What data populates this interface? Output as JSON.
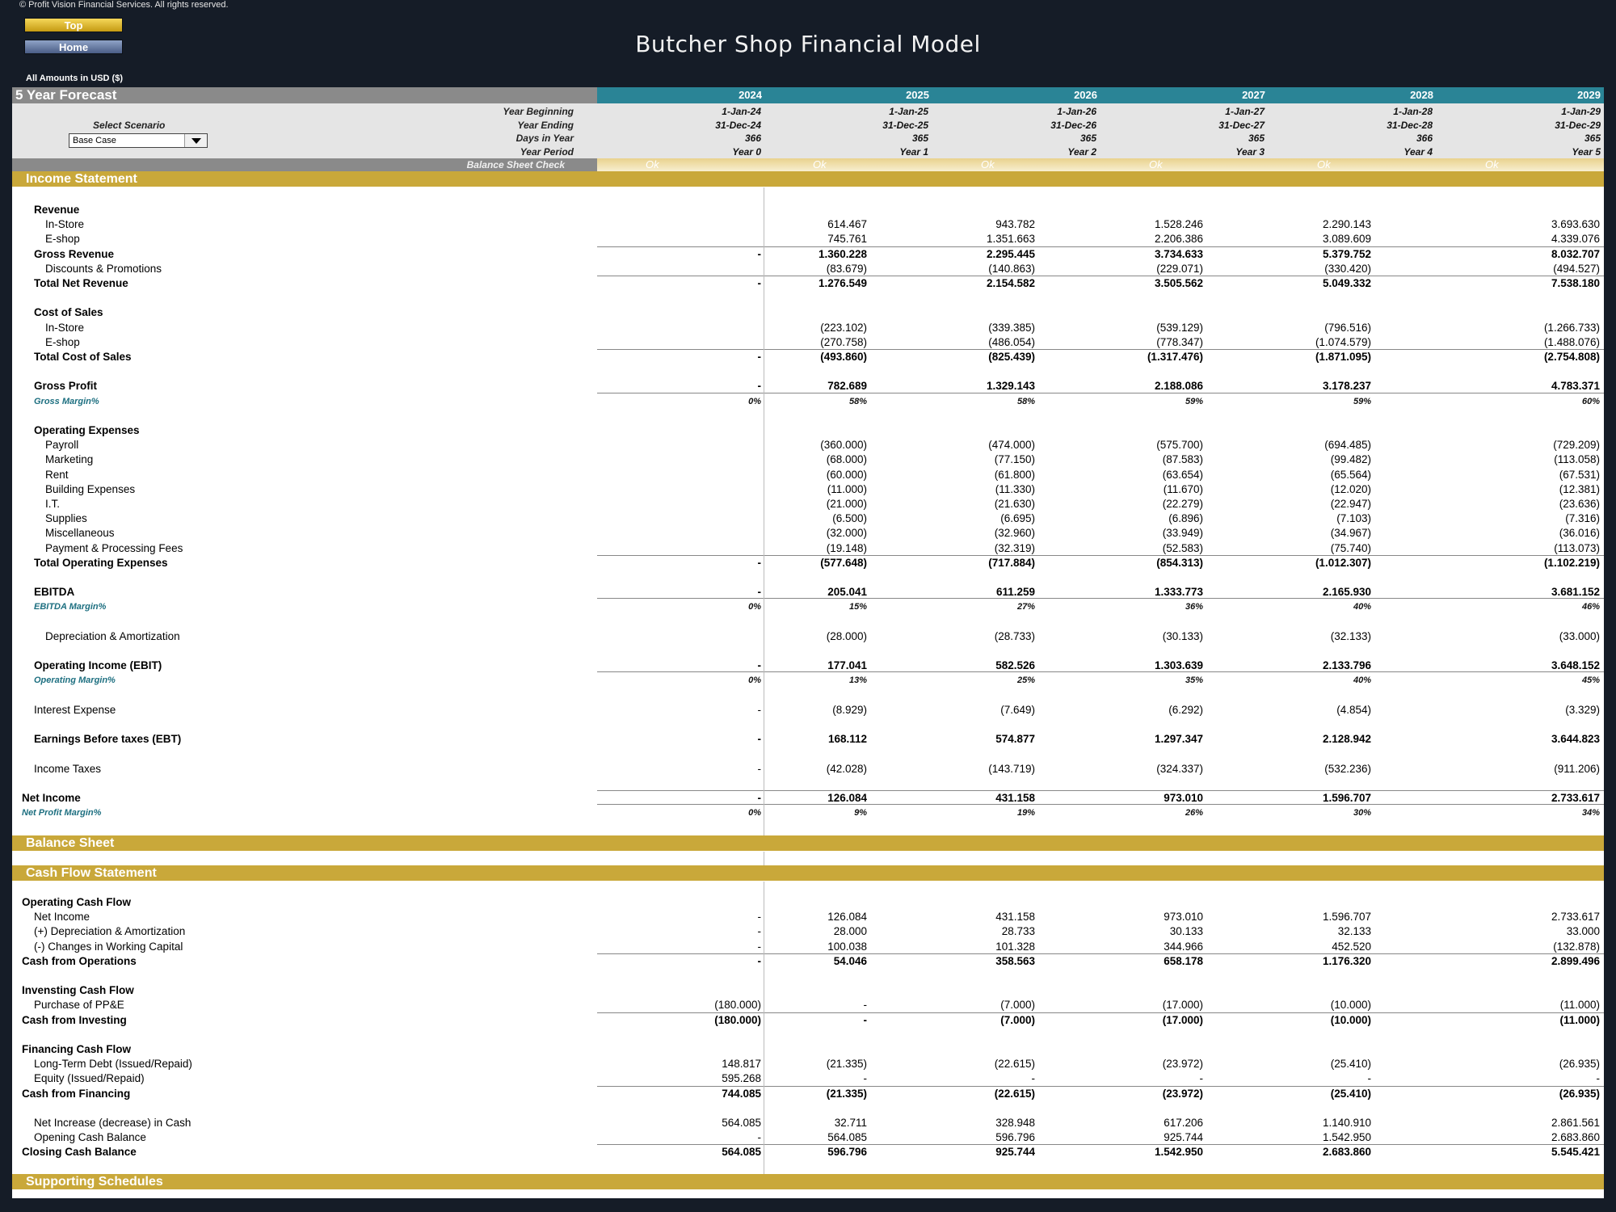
{
  "copyright": "© Profit Vision Financial Services. All rights reserved.",
  "nav": {
    "top_label": "Top",
    "home_label": "Home"
  },
  "title": "Butcher Shop Financial Model",
  "units": "All Amounts in  USD ($)",
  "forecast_label": "5 Year Forecast",
  "years": [
    "2024",
    "2025",
    "2026",
    "2027",
    "2028",
    "2029"
  ],
  "meta": {
    "labels": [
      "Year Beginning",
      "Year Ending",
      "Days in Year",
      "Year Period"
    ],
    "rows": [
      [
        "1-Jan-24",
        "1-Jan-25",
        "1-Jan-26",
        "1-Jan-27",
        "1-Jan-28",
        "1-Jan-29"
      ],
      [
        "31-Dec-24",
        "31-Dec-25",
        "31-Dec-26",
        "31-Dec-27",
        "31-Dec-28",
        "31-Dec-29"
      ],
      [
        "366",
        "365",
        "365",
        "365",
        "366",
        "365"
      ],
      [
        "Year 0",
        "Year 1",
        "Year 2",
        "Year 3",
        "Year 4",
        "Year 5"
      ]
    ]
  },
  "scenario": {
    "label": "Select Scenario",
    "value": "Base Case"
  },
  "balance_check": {
    "label": "Balance Sheet Check",
    "values": [
      "Ok",
      "Ok",
      "Ok",
      "Ok",
      "Ok",
      "Ok"
    ]
  },
  "sections": {
    "income": "Income Statement",
    "balance": "Balance Sheet",
    "cashflow": "Cash Flow Statement",
    "supporting": "Supporting Schedules"
  },
  "income_rows": [
    {
      "label": "Revenue",
      "type": "heading",
      "indent": 1,
      "values": []
    },
    {
      "label": "In-Store",
      "indent": 2,
      "values": [
        "",
        "614.467",
        "943.782",
        "1.528.246",
        "2.290.143",
        "3.693.630"
      ]
    },
    {
      "label": "E-shop",
      "indent": 2,
      "values": [
        "",
        "745.761",
        "1.351.663",
        "2.206.386",
        "3.089.609",
        "4.339.076"
      ]
    },
    {
      "label": "Gross Revenue",
      "type": "bold",
      "indent": 1,
      "line": true,
      "values": [
        "-",
        "1.360.228",
        "2.295.445",
        "3.734.633",
        "5.379.752",
        "8.032.707"
      ]
    },
    {
      "label": "Discounts & Promotions",
      "indent": 2,
      "values": [
        "",
        "(83.679)",
        "(140.863)",
        "(229.071)",
        "(330.420)",
        "(494.527)"
      ]
    },
    {
      "label": "Total Net Revenue",
      "type": "bold",
      "indent": 1,
      "line": true,
      "values": [
        "-",
        "1.276.549",
        "2.154.582",
        "3.505.562",
        "5.049.332",
        "7.538.180"
      ]
    },
    {
      "label": "",
      "values": []
    },
    {
      "label": "Cost of Sales",
      "type": "heading",
      "indent": 1,
      "values": []
    },
    {
      "label": "In-Store",
      "indent": 2,
      "values": [
        "",
        "(223.102)",
        "(339.385)",
        "(539.129)",
        "(796.516)",
        "(1.266.733)"
      ]
    },
    {
      "label": "E-shop",
      "indent": 2,
      "values": [
        "",
        "(270.758)",
        "(486.054)",
        "(778.347)",
        "(1.074.579)",
        "(1.488.076)"
      ]
    },
    {
      "label": "Total Cost of Sales",
      "type": "bold",
      "indent": 1,
      "line": true,
      "values": [
        "-",
        "(493.860)",
        "(825.439)",
        "(1.317.476)",
        "(1.871.095)",
        "(2.754.808)"
      ]
    },
    {
      "label": "",
      "values": []
    },
    {
      "label": "Gross Profit",
      "type": "bold",
      "indent": 1,
      "values": [
        "-",
        "782.689",
        "1.329.143",
        "2.188.086",
        "3.178.237",
        "4.783.371"
      ]
    },
    {
      "label": "Gross Margin%",
      "type": "pct",
      "indent": 1,
      "line": true,
      "values": [
        "0%",
        "58%",
        "58%",
        "59%",
        "59%",
        "60%"
      ]
    },
    {
      "label": "",
      "values": []
    },
    {
      "label": "Operating Expenses",
      "type": "heading",
      "indent": 1,
      "values": []
    },
    {
      "label": "Payroll",
      "indent": 2,
      "values": [
        "",
        "(360.000)",
        "(474.000)",
        "(575.700)",
        "(694.485)",
        "(729.209)"
      ]
    },
    {
      "label": "Marketing",
      "indent": 2,
      "values": [
        "",
        "(68.000)",
        "(77.150)",
        "(87.583)",
        "(99.482)",
        "(113.058)"
      ]
    },
    {
      "label": "Rent",
      "indent": 2,
      "values": [
        "",
        "(60.000)",
        "(61.800)",
        "(63.654)",
        "(65.564)",
        "(67.531)"
      ]
    },
    {
      "label": "Building Expenses",
      "indent": 2,
      "values": [
        "",
        "(11.000)",
        "(11.330)",
        "(11.670)",
        "(12.020)",
        "(12.381)"
      ]
    },
    {
      "label": "I.T.",
      "indent": 2,
      "values": [
        "",
        "(21.000)",
        "(21.630)",
        "(22.279)",
        "(22.947)",
        "(23.636)"
      ]
    },
    {
      "label": "Supplies",
      "indent": 2,
      "values": [
        "",
        "(6.500)",
        "(6.695)",
        "(6.896)",
        "(7.103)",
        "(7.316)"
      ]
    },
    {
      "label": "Miscellaneous",
      "indent": 2,
      "values": [
        "",
        "(32.000)",
        "(32.960)",
        "(33.949)",
        "(34.967)",
        "(36.016)"
      ]
    },
    {
      "label": "Payment & Processing Fees",
      "indent": 2,
      "values": [
        "",
        "(19.148)",
        "(32.319)",
        "(52.583)",
        "(75.740)",
        "(113.073)"
      ]
    },
    {
      "label": "Total Operating Expenses",
      "type": "bold",
      "indent": 1,
      "line": true,
      "values": [
        "-",
        "(577.648)",
        "(717.884)",
        "(854.313)",
        "(1.012.307)",
        "(1.102.219)"
      ]
    },
    {
      "label": "",
      "values": []
    },
    {
      "label": "EBITDA",
      "type": "bold",
      "indent": 1,
      "values": [
        "-",
        "205.041",
        "611.259",
        "1.333.773",
        "2.165.930",
        "3.681.152"
      ]
    },
    {
      "label": "EBITDA Margin%",
      "type": "pct",
      "indent": 1,
      "line": true,
      "values": [
        "0%",
        "15%",
        "27%",
        "36%",
        "40%",
        "46%"
      ]
    },
    {
      "label": "",
      "values": []
    },
    {
      "label": "Depreciation & Amortization",
      "indent": 2,
      "values": [
        "",
        "(28.000)",
        "(28.733)",
        "(30.133)",
        "(32.133)",
        "(33.000)"
      ]
    },
    {
      "label": "",
      "values": []
    },
    {
      "label": "Operating Income (EBIT)",
      "type": "bold",
      "indent": 1,
      "values": [
        "-",
        "177.041",
        "582.526",
        "1.303.639",
        "2.133.796",
        "3.648.152"
      ]
    },
    {
      "label": "Operating Margin%",
      "type": "pct",
      "indent": 1,
      "line": true,
      "values": [
        "0%",
        "13%",
        "25%",
        "35%",
        "40%",
        "45%"
      ]
    },
    {
      "label": "",
      "values": []
    },
    {
      "label": "Interest Expense",
      "indent": 1,
      "values": [
        "-",
        "(8.929)",
        "(7.649)",
        "(6.292)",
        "(4.854)",
        "(3.329)"
      ]
    },
    {
      "label": "",
      "values": []
    },
    {
      "label": "Earnings Before taxes (EBT)",
      "type": "bold",
      "indent": 1,
      "values": [
        "-",
        "168.112",
        "574.877",
        "1.297.347",
        "2.128.942",
        "3.644.823"
      ]
    },
    {
      "label": "",
      "values": []
    },
    {
      "label": "Income Taxes",
      "indent": 1,
      "values": [
        "-",
        "(42.028)",
        "(143.719)",
        "(324.337)",
        "(532.236)",
        "(911.206)"
      ]
    },
    {
      "label": "",
      "values": []
    },
    {
      "label": "Net Income",
      "type": "bold",
      "indent": 0,
      "line": true,
      "values": [
        "-",
        "126.084",
        "431.158",
        "973.010",
        "1.596.707",
        "2.733.617"
      ]
    },
    {
      "label": "Net Profit Margin%",
      "type": "pct",
      "indent": 0,
      "line": true,
      "values": [
        "0%",
        "9%",
        "19%",
        "26%",
        "30%",
        "34%"
      ]
    }
  ],
  "cashflow_rows": [
    {
      "label": "Operating Cash Flow",
      "type": "heading",
      "indent": 0,
      "values": []
    },
    {
      "label": "Net Income",
      "indent": 1,
      "values": [
        "-",
        "126.084",
        "431.158",
        "973.010",
        "1.596.707",
        "2.733.617"
      ]
    },
    {
      "label": "(+) Depreciation & Amortization",
      "indent": 1,
      "values": [
        "-",
        "28.000",
        "28.733",
        "30.133",
        "32.133",
        "33.000"
      ]
    },
    {
      "label": "(-) Changes in Working Capital",
      "indent": 1,
      "values": [
        "-",
        "100.038",
        "101.328",
        "344.966",
        "452.520",
        "(132.878)"
      ]
    },
    {
      "label": "Cash from Operations",
      "type": "bold",
      "indent": 0,
      "line": true,
      "values": [
        "-",
        "54.046",
        "358.563",
        "658.178",
        "1.176.320",
        "2.899.496"
      ]
    },
    {
      "label": "",
      "values": []
    },
    {
      "label": "Invensting Cash Flow",
      "type": "heading",
      "indent": 0,
      "values": []
    },
    {
      "label": "Purchase of PP&E",
      "indent": 1,
      "values": [
        "(180.000)",
        "-",
        "(7.000)",
        "(17.000)",
        "(10.000)",
        "(11.000)"
      ]
    },
    {
      "label": "Cash from Investing",
      "type": "bold",
      "indent": 0,
      "line": true,
      "values": [
        "(180.000)",
        "-",
        "(7.000)",
        "(17.000)",
        "(10.000)",
        "(11.000)"
      ]
    },
    {
      "label": "",
      "values": []
    },
    {
      "label": "Financing Cash Flow",
      "type": "heading",
      "indent": 0,
      "values": []
    },
    {
      "label": "Long-Term Debt (Issued/Repaid)",
      "indent": 1,
      "values": [
        "148.817",
        "(21.335)",
        "(22.615)",
        "(23.972)",
        "(25.410)",
        "(26.935)"
      ]
    },
    {
      "label": "Equity (Issued/Repaid)",
      "indent": 1,
      "values": [
        "595.268",
        "-",
        "-",
        "-",
        "-",
        "-"
      ]
    },
    {
      "label": "Cash from Financing",
      "type": "bold",
      "indent": 0,
      "line": true,
      "values": [
        "744.085",
        "(21.335)",
        "(22.615)",
        "(23.972)",
        "(25.410)",
        "(26.935)"
      ]
    },
    {
      "label": "",
      "values": []
    },
    {
      "label": "Net Increase (decrease) in Cash",
      "indent": 1,
      "values": [
        "564.085",
        "32.711",
        "328.948",
        "617.206",
        "1.140.910",
        "2.861.561"
      ]
    },
    {
      "label": "Opening Cash Balance",
      "indent": 1,
      "values": [
        "-",
        "564.085",
        "596.796",
        "925.744",
        "1.542.950",
        "2.683.860"
      ]
    },
    {
      "label": "Closing Cash Balance",
      "type": "bold",
      "indent": 0,
      "line": true,
      "values": [
        "564.085",
        "596.796",
        "925.744",
        "1.542.950",
        "2.683.860",
        "5.545.421"
      ]
    }
  ]
}
